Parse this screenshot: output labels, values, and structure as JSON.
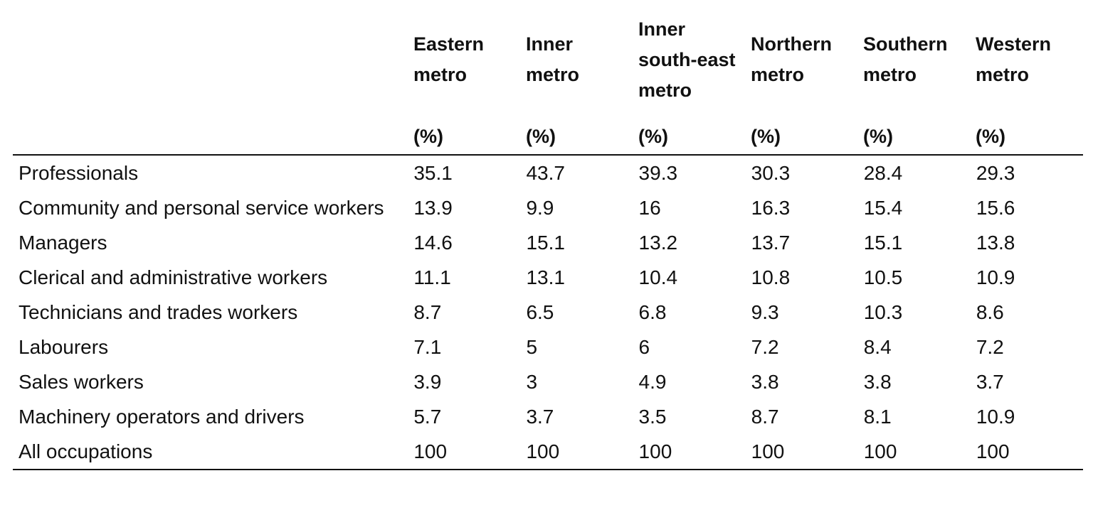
{
  "table": {
    "columns": [
      {
        "label": "Eastern metro",
        "unit": "(%)"
      },
      {
        "label": "Inner metro",
        "unit": "(%)"
      },
      {
        "label": "Inner south-east metro",
        "unit": "(%)"
      },
      {
        "label": "Northern metro",
        "unit": "(%)"
      },
      {
        "label": "Southern metro",
        "unit": "(%)"
      },
      {
        "label": "Western metro",
        "unit": "(%)"
      }
    ],
    "rows": [
      {
        "label": "Professionals",
        "values": [
          35.1,
          43.7,
          39.3,
          30.3,
          28.4,
          29.3
        ]
      },
      {
        "label": "Community and personal service workers",
        "values": [
          13.9,
          9.9,
          16,
          16.3,
          15.4,
          15.6
        ]
      },
      {
        "label": "Managers",
        "values": [
          14.6,
          15.1,
          13.2,
          13.7,
          15.1,
          13.8
        ]
      },
      {
        "label": "Clerical and administrative workers",
        "values": [
          11.1,
          13.1,
          10.4,
          10.8,
          10.5,
          10.9
        ]
      },
      {
        "label": "Technicians and trades workers",
        "values": [
          8.7,
          6.5,
          6.8,
          9.3,
          10.3,
          8.6
        ]
      },
      {
        "label": "Labourers",
        "values": [
          7.1,
          5,
          6,
          7.2,
          8.4,
          7.2
        ]
      },
      {
        "label": "Sales workers",
        "values": [
          3.9,
          3,
          4.9,
          3.8,
          3.8,
          3.7
        ]
      },
      {
        "label": "Machinery operators and drivers",
        "values": [
          5.7,
          3.7,
          3.5,
          8.7,
          8.1,
          10.9
        ]
      },
      {
        "label": "All occupations",
        "values": [
          100,
          100,
          100,
          100,
          100,
          100
        ]
      }
    ]
  }
}
